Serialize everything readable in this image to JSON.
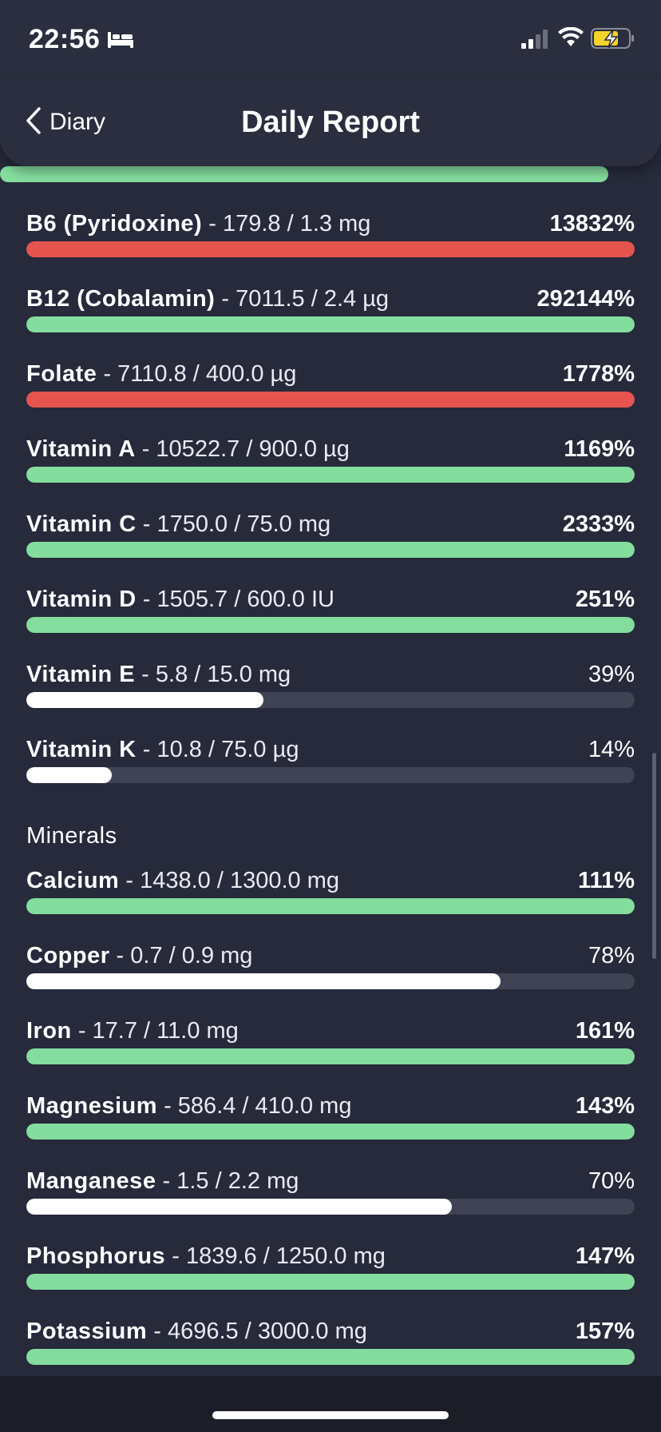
{
  "status_bar": {
    "time": "22:56",
    "sleep_icon": "bed-icon",
    "signal_icon": "cellular-signal-icon",
    "wifi_icon": "wifi-icon",
    "battery_icon": "battery-charging-icon",
    "battery_color": "#f5d328"
  },
  "nav": {
    "back_label": "Diary",
    "title": "Daily Report"
  },
  "colors": {
    "good": "#84dc9e",
    "over": "#e5544f",
    "partial": "#ffffff",
    "track": "#3f4354",
    "background": "#262a3a"
  },
  "top_partial_bar": {
    "status": "good",
    "fill": 1.0
  },
  "vitamins": [
    {
      "name": "B6 (Pyridoxine)",
      "amount": " - 179.8 / 1.3 mg",
      "percent": "13832%",
      "status": "over",
      "fill": 1.0
    },
    {
      "name": "B12 (Cobalamin)",
      "amount": " - 7011.5 / 2.4 µg",
      "percent": "292144%",
      "status": "good",
      "fill": 1.0
    },
    {
      "name": "Folate",
      "amount": " - 7110.8 / 400.0 µg",
      "percent": "1778%",
      "status": "over",
      "fill": 1.0
    },
    {
      "name": "Vitamin A",
      "amount": " - 10522.7 / 900.0 µg",
      "percent": "1169%",
      "status": "good",
      "fill": 1.0
    },
    {
      "name": "Vitamin C",
      "amount": " - 1750.0 / 75.0 mg",
      "percent": "2333%",
      "status": "good",
      "fill": 1.0
    },
    {
      "name": "Vitamin D",
      "amount": " - 1505.7 / 600.0 IU",
      "percent": "251%",
      "status": "good",
      "fill": 1.0
    },
    {
      "name": "Vitamin E",
      "amount": " - 5.8 / 15.0 mg",
      "percent": "39%",
      "status": "partial",
      "fill": 0.39
    },
    {
      "name": "Vitamin K",
      "amount": " - 10.8 / 75.0 µg",
      "percent": "14%",
      "status": "partial",
      "fill": 0.14
    }
  ],
  "minerals_heading": "Minerals",
  "minerals": [
    {
      "name": "Calcium",
      "amount": " - 1438.0 / 1300.0 mg",
      "percent": "111%",
      "status": "good",
      "fill": 1.0
    },
    {
      "name": "Copper",
      "amount": " - 0.7 / 0.9 mg",
      "percent": "78%",
      "status": "partial",
      "fill": 0.78
    },
    {
      "name": "Iron",
      "amount": " - 17.7 / 11.0 mg",
      "percent": "161%",
      "status": "good",
      "fill": 1.0
    },
    {
      "name": "Magnesium",
      "amount": " - 586.4 / 410.0 mg",
      "percent": "143%",
      "status": "good",
      "fill": 1.0
    },
    {
      "name": "Manganese",
      "amount": " - 1.5 / 2.2 mg",
      "percent": "70%",
      "status": "partial",
      "fill": 0.7
    },
    {
      "name": "Phosphorus",
      "amount": " - 1839.6 / 1250.0 mg",
      "percent": "147%",
      "status": "good",
      "fill": 1.0
    },
    {
      "name": "Potassium",
      "amount": " - 4696.5 / 3000.0 mg",
      "percent": "157%",
      "status": "good",
      "fill": 1.0
    }
  ]
}
